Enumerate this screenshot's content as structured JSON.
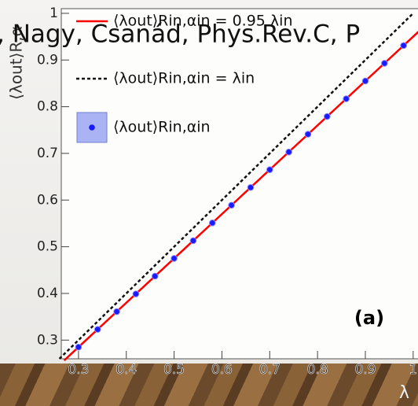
{
  "chart_data": {
    "type": "scatter",
    "overlay_text": ", Nagy, Csanád, Phys.Rev.C, P",
    "y_label": "⟨λout⟩R,α",
    "x_label": "λ",
    "panel_label": "(a)",
    "xlim": [
      0.264,
      1.02
    ],
    "ylim": [
      0.26,
      1.01
    ],
    "xticks": [
      0.3,
      0.4,
      0.5,
      0.6,
      0.7,
      0.8,
      0.9,
      1
    ],
    "yticks": [
      0.3,
      0.4,
      0.5,
      0.6,
      0.7,
      0.8,
      0.9,
      1
    ],
    "series": [
      {
        "name": "⟨λout⟩Rin,αin = 0.95 λin",
        "kind": "line",
        "dash": false,
        "color": "#ff0000",
        "x": [
          0.27,
          1.02
        ],
        "values": [
          0.2565,
          0.969
        ]
      },
      {
        "name": "⟨λout⟩Rin,αin = λin",
        "kind": "line",
        "dash": true,
        "color": "#111111",
        "x": [
          0.26,
          1.0
        ],
        "values": [
          0.26,
          1.0
        ]
      },
      {
        "name": "⟨λout⟩Rin,αin",
        "kind": "point",
        "color": "#1a1aff",
        "x": [
          0.3,
          0.34,
          0.38,
          0.42,
          0.46,
          0.5,
          0.54,
          0.58,
          0.62,
          0.66,
          0.7,
          0.74,
          0.78,
          0.82,
          0.86,
          0.9,
          0.94,
          0.98
        ],
        "values": [
          0.285,
          0.323,
          0.361,
          0.399,
          0.437,
          0.475,
          0.513,
          0.551,
          0.589,
          0.627,
          0.665,
          0.703,
          0.741,
          0.779,
          0.817,
          0.855,
          0.893,
          0.931
        ]
      }
    ]
  }
}
